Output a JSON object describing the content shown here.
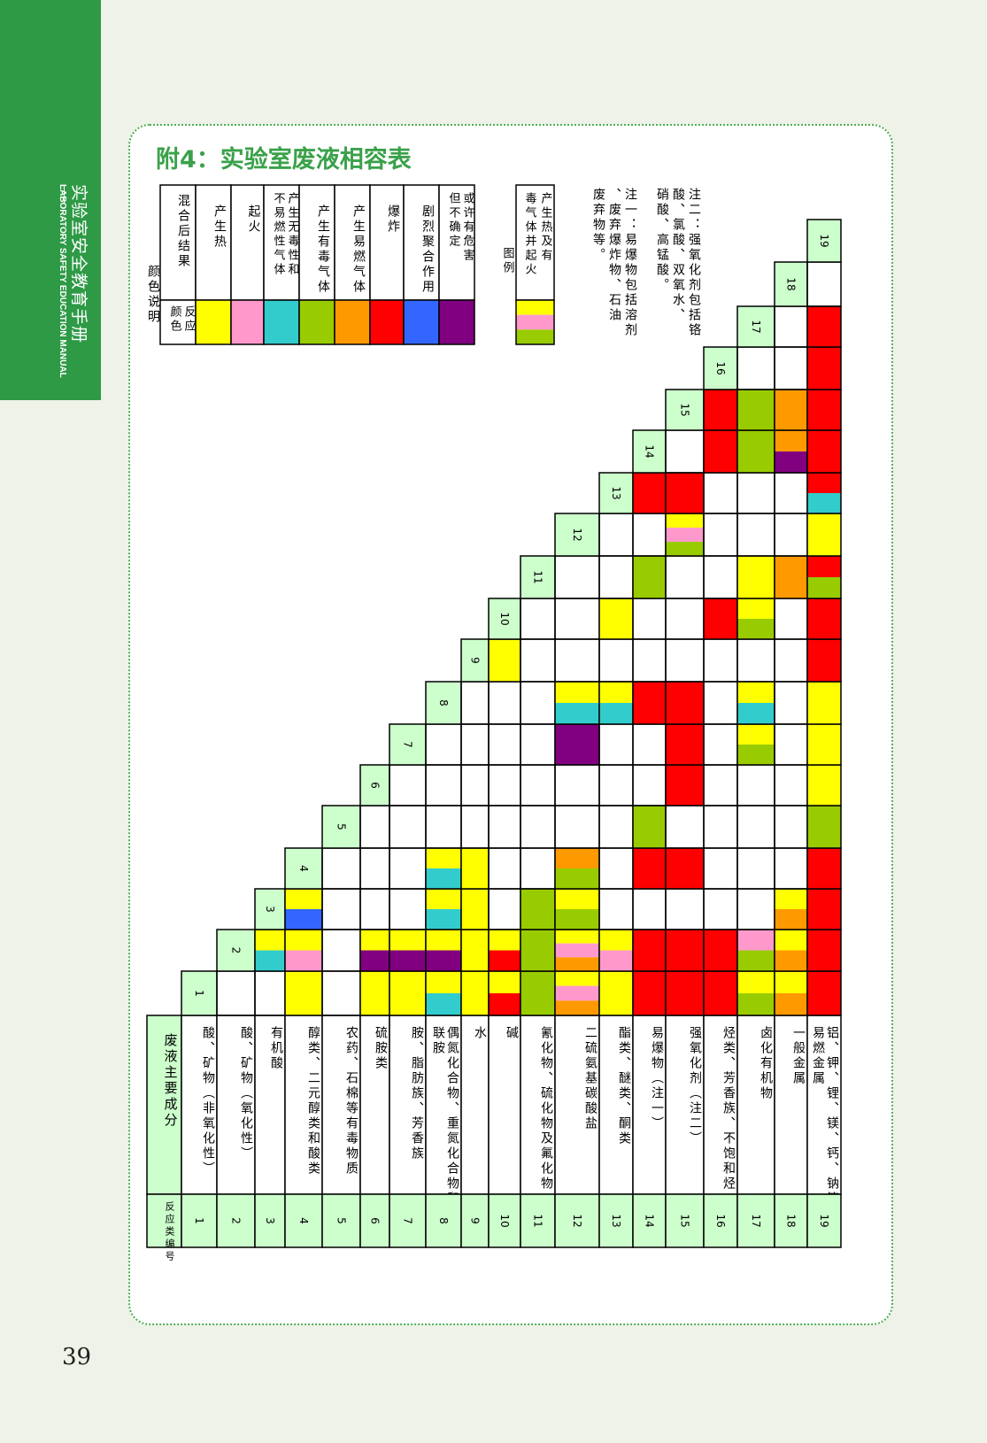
{
  "side_tab": {
    "title_cn": "实验室安全教育手册",
    "title_en": "LABORATORY SAFETY EDUCATION MANUAL"
  },
  "page_title": "附4：实验室废液相容表",
  "page_number": "39",
  "colors": {
    "Y": "#ffff00",
    "P": "#ff99cc",
    "C": "#33cccc",
    "G": "#99cc00",
    "O": "#ff9900",
    "R": "#ff0000",
    "B": "#3366ff",
    "V": "#800080",
    "header_green": "#ccffcc",
    "brand_green": "#2e9a46"
  },
  "legend": {
    "title": "颜色说明",
    "col_color": "反应颜色",
    "col_result": "混合后结果",
    "items": [
      {
        "color": "Y",
        "label": "产生热"
      },
      {
        "color": "P",
        "label": "起火"
      },
      {
        "color": "C",
        "label": "产生无毒性和不易燃性气体"
      },
      {
        "color": "G",
        "label": "产生有毒气体"
      },
      {
        "color": "O",
        "label": "产生易燃气体"
      },
      {
        "color": "R",
        "label": "爆炸"
      },
      {
        "color": "B",
        "label": "剧烈聚合作用"
      },
      {
        "color": "V",
        "label": "或许有危害但不确定"
      }
    ],
    "example_title": "图例",
    "example_text": "产生热及有毒气体并起火",
    "example_colors": [
      "Y",
      "P",
      "G"
    ]
  },
  "notes": [
    "注一：易爆物包括溶剂、废弃爆炸物、石油废弃物等。",
    "注二：强氧化剂包括铬酸、氯酸、双氧水、硝酸、高锰酸。"
  ],
  "table": {
    "header_id": "反应类编号",
    "header_name": "废液主要成分",
    "categories": [
      {
        "id": "1",
        "name": "酸、矿物（非氧化性）"
      },
      {
        "id": "2",
        "name": "酸、矿物（氧化性）"
      },
      {
        "id": "3",
        "name": "有机酸"
      },
      {
        "id": "4",
        "name": "醇类、二元醇类和酸类"
      },
      {
        "id": "5",
        "name": "农药、石棉等有毒物质"
      },
      {
        "id": "6",
        "name": "硫胺类"
      },
      {
        "id": "7",
        "name": "胺、脂肪族、芳香族"
      },
      {
        "id": "8",
        "name": "偶氮化合物、重氮化合物和联胺"
      },
      {
        "id": "9",
        "name": "水"
      },
      {
        "id": "10",
        "name": "碱"
      },
      {
        "id": "11",
        "name": "氰化物、硫化物及氟化物"
      },
      {
        "id": "12",
        "name": "二硫氨基碳酸盐"
      },
      {
        "id": "13",
        "name": "酯类、醚类、酮类"
      },
      {
        "id": "14",
        "name": "易爆物（注一）"
      },
      {
        "id": "15",
        "name": "强氧化剂（注二）"
      },
      {
        "id": "16",
        "name": "烃类、芳香族、不饱和烃"
      },
      {
        "id": "17",
        "name": "卤化有机物"
      },
      {
        "id": "18",
        "name": "一般金属"
      },
      {
        "id": "19",
        "name": "铝、钾、锂、镁、钙、钠等易燃金属"
      }
    ],
    "cells": {
      "3-2": [
        "Y",
        "C"
      ],
      "4-1": [
        "Y"
      ],
      "4-2": [
        "Y",
        "P"
      ],
      "4-3": [
        "Y",
        "B"
      ],
      "6-1": [
        "Y"
      ],
      "6-2": [
        "Y",
        "V"
      ],
      "7-1": [
        "Y"
      ],
      "7-2": [
        "Y",
        "V"
      ],
      "8-1": [
        "Y",
        "C"
      ],
      "8-2": [
        "Y",
        "V"
      ],
      "8-3": [
        "Y",
        "C"
      ],
      "8-4": [
        "Y",
        "C"
      ],
      "9-1": [
        "Y"
      ],
      "9-2": [
        "Y"
      ],
      "9-3": [
        "Y"
      ],
      "9-4": [
        "Y"
      ],
      "10-1": [
        "Y",
        "R"
      ],
      "10-2": [
        "Y",
        "R"
      ],
      "10-9": [
        "Y"
      ],
      "11-1": [
        "G"
      ],
      "11-2": [
        "G"
      ],
      "11-3": [
        "G"
      ],
      "12-1": [
        "Y",
        "P",
        "O"
      ],
      "12-2": [
        "Y",
        "P",
        "O"
      ],
      "12-3": [
        "Y",
        "G"
      ],
      "12-4": [
        "O",
        "G"
      ],
      "12-7": [
        "V"
      ],
      "12-8": [
        "Y",
        "C"
      ],
      "13-1": [
        "Y"
      ],
      "13-2": [
        "Y",
        "P"
      ],
      "13-8": [
        "Y",
        "C"
      ],
      "13-10": [
        "Y"
      ],
      "14-1": [
        "R"
      ],
      "14-2": [
        "R"
      ],
      "14-4": [
        "R"
      ],
      "14-5": [
        "G"
      ],
      "14-8": [
        "R"
      ],
      "14-11": [
        "G"
      ],
      "14-13": [
        "R"
      ],
      "15-1": [
        "R"
      ],
      "15-2": [
        "R"
      ],
      "15-4": [
        "R"
      ],
      "15-6": [
        "R"
      ],
      "15-7": [
        "R"
      ],
      "15-8": [
        "R"
      ],
      "15-12": [
        "Y",
        "P",
        "G"
      ],
      "15-13": [
        "R"
      ],
      "16-1": [
        "R"
      ],
      "16-2": [
        "R"
      ],
      "16-10": [
        "R"
      ],
      "16-14": [
        "R"
      ],
      "16-15": [
        "R"
      ],
      "17-1": [
        "Y",
        "G"
      ],
      "17-2": [
        "P",
        "G"
      ],
      "17-7": [
        "Y",
        "G"
      ],
      "17-8": [
        "Y",
        "C"
      ],
      "17-10": [
        "Y",
        "G"
      ],
      "17-11": [
        "Y"
      ],
      "17-14": [
        "G"
      ],
      "17-15": [
        "G"
      ],
      "18-1": [
        "Y",
        "O"
      ],
      "18-2": [
        "Y",
        "O"
      ],
      "18-3": [
        "Y",
        "O"
      ],
      "18-11": [
        "O"
      ],
      "18-14": [
        "O",
        "V"
      ],
      "18-15": [
        "O"
      ],
      "19-1": [
        "R"
      ],
      "19-2": [
        "R"
      ],
      "19-3": [
        "R"
      ],
      "19-4": [
        "R"
      ],
      "19-5": [
        "G"
      ],
      "19-6": [
        "Y"
      ],
      "19-7": [
        "Y"
      ],
      "19-8": [
        "Y"
      ],
      "19-9": [
        "R"
      ],
      "19-10": [
        "R"
      ],
      "19-11": [
        "R",
        "G"
      ],
      "19-12": [
        "Y"
      ],
      "19-13": [
        "R",
        "C"
      ],
      "19-14": [
        "R"
      ],
      "19-15": [
        "R"
      ],
      "19-16": [
        "R"
      ],
      "19-17": [
        "R"
      ]
    }
  }
}
